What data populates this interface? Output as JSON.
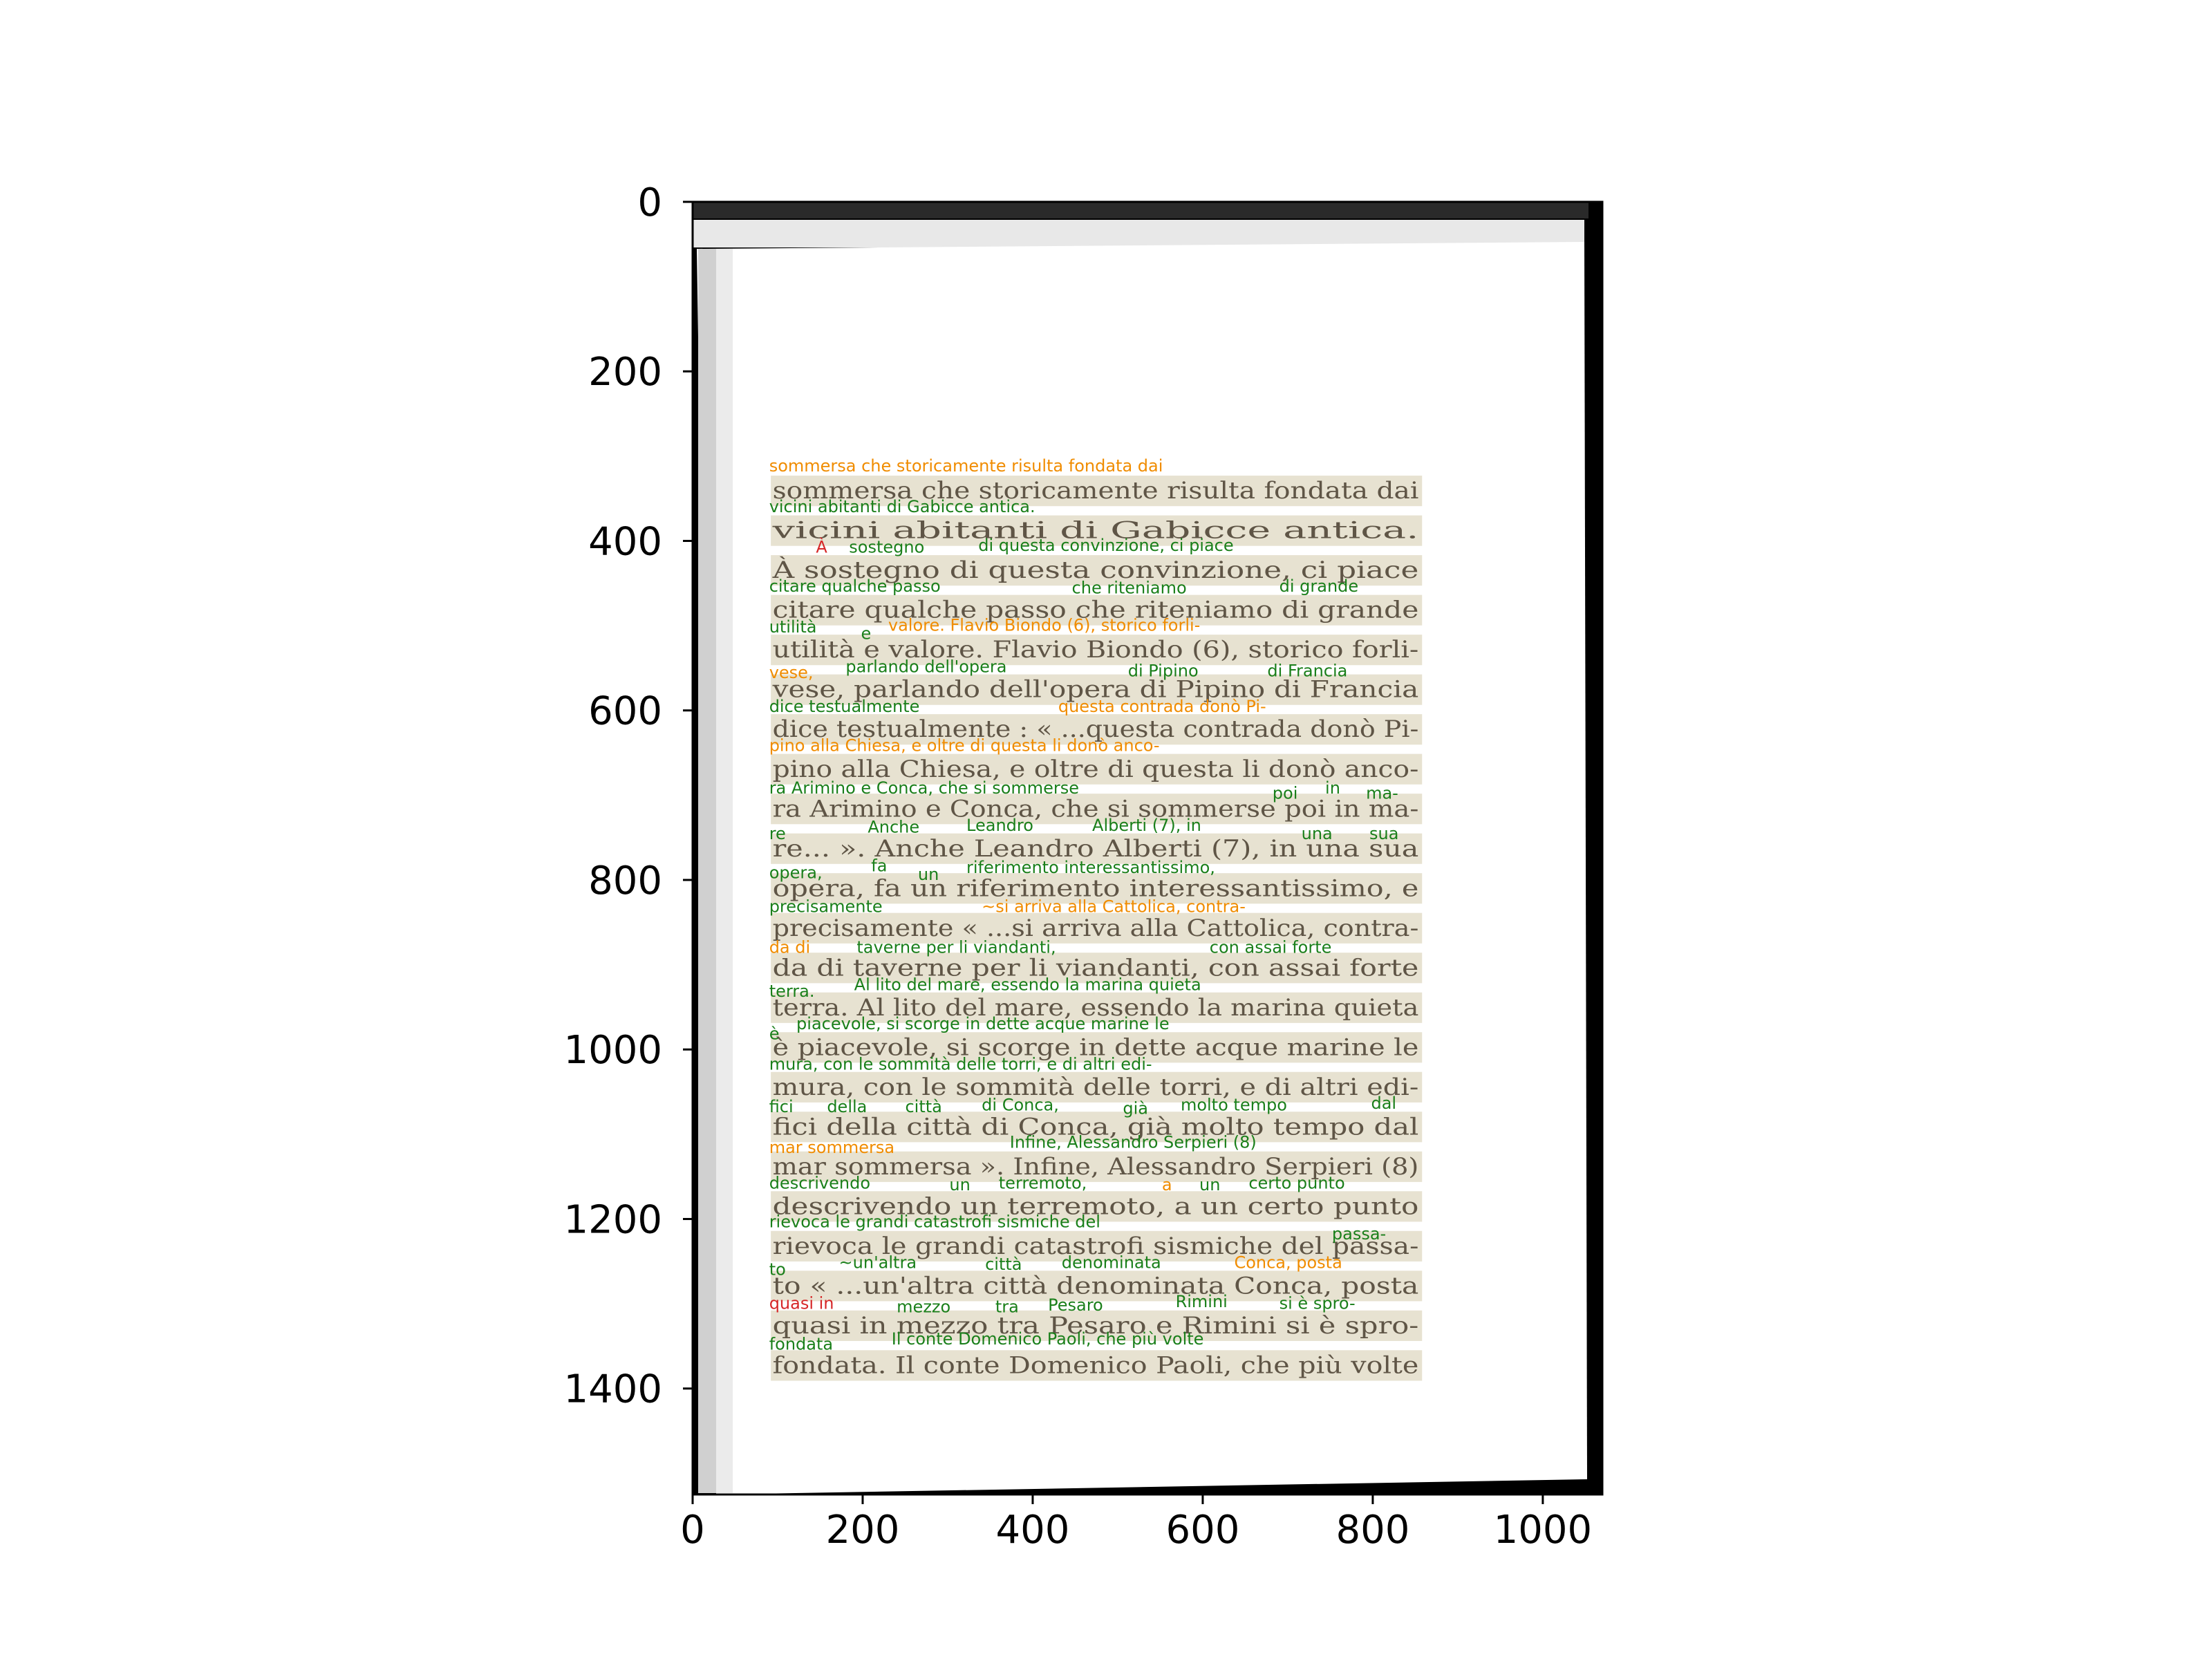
{
  "axes": {
    "x_ticks": [
      "0",
      "200",
      "400",
      "600",
      "800",
      "1000"
    ],
    "y_ticks": [
      "0",
      "200",
      "400",
      "600",
      "800",
      "1000",
      "1200",
      "1400"
    ],
    "x_range": [
      0,
      1070
    ],
    "y_range": [
      1525,
      0
    ],
    "y_inverted": true
  },
  "colors": {
    "high_confidence": "#1a7f1a",
    "medium_confidence": "#f08c00",
    "low_confidence": "#d62728",
    "box_fill": "#d8d1b4",
    "printed_text": "#5f5546"
  },
  "lines": [
    "sommersa che storicamente risulta fondata dai",
    "vicini abitanti di Gabicce antica.",
    "À sostegno di questa convinzione, ci piace",
    "citare qualche passo che riteniamo di grande",
    "utilità e valore. Flavio Biondo (6), storico forli-",
    "vese, parlando dell'opera di Pipino di Francia",
    "dice testualmente : « ...questa contrada donò Pi-",
    "pino alla Chiesa, e oltre di questa li donò anco-",
    "ra Arimino e Conca, che si sommerse poi in ma-",
    "re... ». Anche Leandro Alberti (7), in una sua",
    "opera, fa un riferimento interessantissimo, e",
    "precisamente « ...si arriva alla Cattolica, contra-",
    "da di taverne per li viandanti, con assai forte",
    "terra. Al lito del mare, essendo la marina quieta",
    "è piacevole, si scorge in dette acque marine le",
    "mura, con le sommità delle torri, e di altri edi-",
    "fici della città di Conca, già molto tempo dal",
    "mar sommersa ». Infine, Alessandro Serpieri (8)",
    "descrivendo un terremoto, a un certo punto",
    "rievoca le grandi catastrofi sismiche del passa-",
    "to « ...un'altra città denominata Conca, posta",
    "quasi in mezzo tra Pesaro e Rimini si è spro-",
    "fondata. Il conte Domenico Paoli, che più volte"
  ],
  "ocr_labels": [
    {
      "text": "sommersa che storicamente risulta fondata dai",
      "x": 90,
      "y": 318,
      "conf": "medium"
    },
    {
      "text": "vicini abitanti di Gabicce antica.",
      "x": 90,
      "y": 366,
      "conf": "high"
    },
    {
      "text": "À",
      "x": 145,
      "y": 414,
      "conf": "low"
    },
    {
      "text": "sostegno",
      "x": 184,
      "y": 414,
      "conf": "high"
    },
    {
      "text": "di questa convinzione, ci piace",
      "x": 336,
      "y": 412,
      "conf": "high"
    },
    {
      "text": "citare qualche passo",
      "x": 90,
      "y": 460,
      "conf": "high"
    },
    {
      "text": "che riteniamo",
      "x": 446,
      "y": 462,
      "conf": "high"
    },
    {
      "text": "di grande",
      "x": 690,
      "y": 460,
      "conf": "high"
    },
    {
      "text": "utilità",
      "x": 90,
      "y": 508,
      "conf": "high"
    },
    {
      "text": "e",
      "x": 198,
      "y": 516,
      "conf": "high"
    },
    {
      "text": "valore. Flavio Biondo (6), storico forli-",
      "x": 230,
      "y": 506,
      "conf": "medium"
    },
    {
      "text": "vese,",
      "x": 90,
      "y": 562,
      "conf": "medium"
    },
    {
      "text": "parlando dell'opera",
      "x": 180,
      "y": 555,
      "conf": "high"
    },
    {
      "text": "di Pipino",
      "x": 512,
      "y": 560,
      "conf": "high"
    },
    {
      "text": "di Francia",
      "x": 676,
      "y": 560,
      "conf": "high"
    },
    {
      "text": "dice testualmente",
      "x": 90,
      "y": 602,
      "conf": "high"
    },
    {
      "text": "questa contrada donò Pi-",
      "x": 430,
      "y": 602,
      "conf": "medium"
    },
    {
      "text": "pino alla Chiesa, e oltre di questa li donò anco-",
      "x": 90,
      "y": 648,
      "conf": "medium"
    },
    {
      "text": "ra Arimino e Conca, che si sommerse",
      "x": 90,
      "y": 698,
      "conf": "high"
    },
    {
      "text": "poi",
      "x": 682,
      "y": 704,
      "conf": "high"
    },
    {
      "text": "in",
      "x": 744,
      "y": 698,
      "conf": "high"
    },
    {
      "text": "ma-",
      "x": 792,
      "y": 704,
      "conf": "high"
    },
    {
      "text": "re",
      "x": 90,
      "y": 752,
      "conf": "high"
    },
    {
      "text": "Anche",
      "x": 206,
      "y": 744,
      "conf": "high"
    },
    {
      "text": "Leandro",
      "x": 322,
      "y": 742,
      "conf": "high"
    },
    {
      "text": "Alberti (7), in",
      "x": 470,
      "y": 742,
      "conf": "high"
    },
    {
      "text": "una",
      "x": 716,
      "y": 752,
      "conf": "high"
    },
    {
      "text": "sua",
      "x": 796,
      "y": 752,
      "conf": "high"
    },
    {
      "text": "opera,",
      "x": 90,
      "y": 798,
      "conf": "high"
    },
    {
      "text": "fa",
      "x": 210,
      "y": 790,
      "conf": "high"
    },
    {
      "text": "un",
      "x": 265,
      "y": 800,
      "conf": "high"
    },
    {
      "text": "riferimento interessantissimo,",
      "x": 322,
      "y": 792,
      "conf": "high"
    },
    {
      "text": "precisamente",
      "x": 90,
      "y": 838,
      "conf": "high"
    },
    {
      "text": "~si arriva alla Cattolica, contra-",
      "x": 340,
      "y": 838,
      "conf": "medium"
    },
    {
      "text": "da di",
      "x": 90,
      "y": 886,
      "conf": "medium"
    },
    {
      "text": "taverne per li viandanti,",
      "x": 193,
      "y": 886,
      "conf": "high"
    },
    {
      "text": "con assai forte",
      "x": 608,
      "y": 886,
      "conf": "high"
    },
    {
      "text": "terra.",
      "x": 90,
      "y": 938,
      "conf": "high"
    },
    {
      "text": "Al lito del mare, essendo la marina quieta",
      "x": 190,
      "y": 930,
      "conf": "high"
    },
    {
      "text": "è",
      "x": 90,
      "y": 988,
      "conf": "high"
    },
    {
      "text": "piacevole, si scorge in dette acque marine le",
      "x": 122,
      "y": 976,
      "conf": "high"
    },
    {
      "text": "mura, con le sommità delle torri, e di altri edi-",
      "x": 90,
      "y": 1024,
      "conf": "high"
    },
    {
      "text": "fici",
      "x": 90,
      "y": 1074,
      "conf": "high"
    },
    {
      "text": "della",
      "x": 158,
      "y": 1074,
      "conf": "high"
    },
    {
      "text": "città",
      "x": 250,
      "y": 1074,
      "conf": "high"
    },
    {
      "text": "di Conca,",
      "x": 340,
      "y": 1072,
      "conf": "high"
    },
    {
      "text": "già",
      "x": 506,
      "y": 1076,
      "conf": "high"
    },
    {
      "text": "molto tempo",
      "x": 574,
      "y": 1072,
      "conf": "high"
    },
    {
      "text": "dal",
      "x": 798,
      "y": 1070,
      "conf": "high"
    },
    {
      "text": "mar sommersa",
      "x": 90,
      "y": 1122,
      "conf": "medium"
    },
    {
      "text": "Infine, Alessandro Serpieri (8)",
      "x": 373,
      "y": 1116,
      "conf": "high"
    },
    {
      "text": "descrivendo",
      "x": 90,
      "y": 1164,
      "conf": "high"
    },
    {
      "text": "un",
      "x": 302,
      "y": 1166,
      "conf": "high"
    },
    {
      "text": "terremoto,",
      "x": 360,
      "y": 1164,
      "conf": "high"
    },
    {
      "text": "a",
      "x": 552,
      "y": 1166,
      "conf": "medium"
    },
    {
      "text": "un",
      "x": 596,
      "y": 1166,
      "conf": "high"
    },
    {
      "text": "certo punto",
      "x": 654,
      "y": 1164,
      "conf": "high"
    },
    {
      "text": "rievoca le grandi catastrofi sismiche del",
      "x": 90,
      "y": 1210,
      "conf": "high"
    },
    {
      "text": "passa-",
      "x": 752,
      "y": 1224,
      "conf": "high"
    },
    {
      "text": "to",
      "x": 90,
      "y": 1266,
      "conf": "high"
    },
    {
      "text": "~un'altra",
      "x": 172,
      "y": 1258,
      "conf": "high"
    },
    {
      "text": "città",
      "x": 344,
      "y": 1260,
      "conf": "high"
    },
    {
      "text": "denominata",
      "x": 434,
      "y": 1258,
      "conf": "high"
    },
    {
      "text": "Conca, posta",
      "x": 637,
      "y": 1258,
      "conf": "medium"
    },
    {
      "text": "quasi in",
      "x": 90,
      "y": 1306,
      "conf": "low"
    },
    {
      "text": "mezzo",
      "x": 240,
      "y": 1310,
      "conf": "high"
    },
    {
      "text": "tra",
      "x": 356,
      "y": 1310,
      "conf": "high"
    },
    {
      "text": "Pesaro",
      "x": 418,
      "y": 1308,
      "conf": "high"
    },
    {
      "text": "Rimini",
      "x": 568,
      "y": 1304,
      "conf": "high"
    },
    {
      "text": "si è spro-",
      "x": 690,
      "y": 1306,
      "conf": "high"
    },
    {
      "text": "fondata",
      "x": 90,
      "y": 1354,
      "conf": "high"
    },
    {
      "text": "Il conte Domenico Paoli, che più volte",
      "x": 234,
      "y": 1348,
      "conf": "high"
    }
  ]
}
